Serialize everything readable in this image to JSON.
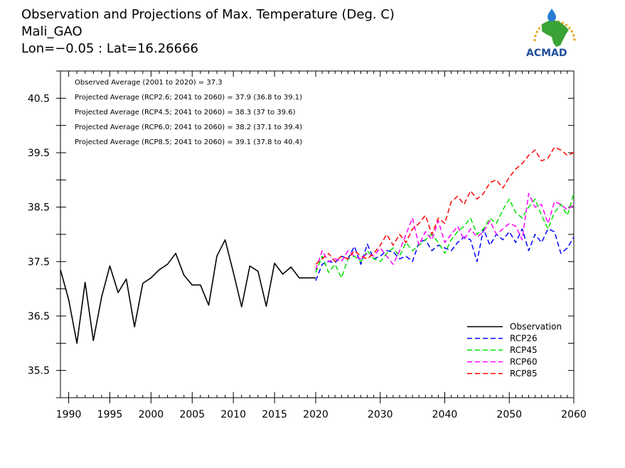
{
  "titles": [
    "Observation and Projections of Max. Temperature (Deg. C)",
    "Mali_GAO",
    "Lon=−0.05 : Lat=16.26666"
  ],
  "logo": {
    "text": "ACMAD",
    "icon": "africa-map-icon",
    "colors": {
      "map": "#3aa335",
      "rays": "#e8a317",
      "drop": "#2a7bd4",
      "text": "#1f4e9c"
    }
  },
  "annotations": [
    "Observed Average (2001 to 2020) = 37.3",
    "Projected Average (RCP2.6; 2041 to 2060) = 37.9 (36.8 to 39.1)",
    "Projected Average (RCP4.5; 2041 to 2060) = 38.3 (37 to 39.6)",
    "Projected Average (RCP6.0; 2041 to 2060) = 38.2 (37.1 to 39.4)",
    "Projected Average (RCP8.5; 2041 to 2060) = 39.1 (37.8 to 40.4)"
  ],
  "chart_data": {
    "type": "line",
    "title": "Observation and Projections of Max. Temperature (Deg. C)",
    "xlim": [
      1989,
      2060
    ],
    "ylim": [
      35.0,
      41.0
    ],
    "yticks": [
      35.5,
      36.5,
      37.5,
      38.5,
      39.5,
      40.5
    ],
    "ytick_labels": [
      "35.5",
      "36.5",
      "37.5",
      "38.5",
      "39.5",
      "40.5"
    ],
    "xticks_left": [
      1990,
      1995,
      2000,
      2005,
      2010,
      2015,
      2020
    ],
    "xtick_labels_left": [
      "1990",
      "1995",
      "2000",
      "2005",
      "2010",
      "2015",
      "2020"
    ],
    "xticks_right": [
      2020,
      2030,
      2040,
      2050,
      2060
    ],
    "xtick_labels_right": [
      "2020",
      "2030",
      "2040",
      "2050",
      "2060"
    ],
    "axis_break_year": 2020,
    "legend_position": "bottom-right",
    "series": [
      {
        "name": "Observation",
        "color": "#000000",
        "dash": "solid",
        "x": [
          1989,
          1990,
          1991,
          1992,
          1993,
          1994,
          1995,
          1996,
          1997,
          1998,
          1999,
          2000,
          2001,
          2002,
          2003,
          2004,
          2005,
          2006,
          2007,
          2008,
          2009,
          2010,
          2011,
          2012,
          2013,
          2014,
          2015,
          2016,
          2017,
          2018,
          2019,
          2020
        ],
        "y": [
          37.35,
          36.8,
          36.0,
          37.12,
          36.05,
          36.85,
          37.42,
          36.93,
          37.18,
          36.3,
          37.1,
          37.2,
          37.35,
          37.45,
          37.65,
          37.25,
          37.07,
          37.07,
          36.7,
          37.6,
          37.9,
          37.3,
          36.67,
          37.42,
          37.32,
          36.68,
          37.47,
          37.27,
          37.4,
          37.2,
          37.2,
          37.2
        ]
      },
      {
        "name": "RCP26",
        "color": "#0000ff",
        "dash": "dashed",
        "x": [
          2020,
          2021,
          2022,
          2023,
          2024,
          2025,
          2026,
          2027,
          2028,
          2029,
          2030,
          2031,
          2032,
          2033,
          2034,
          2035,
          2036,
          2037,
          2038,
          2039,
          2040,
          2041,
          2042,
          2043,
          2044,
          2045,
          2046,
          2047,
          2048,
          2049,
          2050,
          2051,
          2052,
          2053,
          2054,
          2055,
          2056,
          2057,
          2058,
          2059,
          2060
        ],
        "y": [
          37.15,
          37.45,
          37.5,
          37.48,
          37.6,
          37.55,
          37.78,
          37.45,
          37.82,
          37.55,
          37.6,
          37.7,
          37.68,
          37.55,
          37.6,
          37.5,
          37.85,
          37.9,
          37.7,
          37.8,
          37.75,
          37.7,
          37.85,
          37.95,
          37.9,
          37.5,
          38.1,
          37.8,
          38.0,
          37.9,
          38.05,
          37.85,
          38.1,
          37.7,
          38.0,
          37.85,
          38.1,
          38.05,
          37.65,
          37.75,
          37.95
        ]
      },
      {
        "name": "RCP45",
        "color": "#00e000",
        "dash": "dashed",
        "x": [
          2020,
          2021,
          2022,
          2023,
          2024,
          2025,
          2026,
          2027,
          2028,
          2029,
          2030,
          2031,
          2032,
          2033,
          2034,
          2035,
          2036,
          2037,
          2038,
          2039,
          2040,
          2041,
          2042,
          2043,
          2044,
          2045,
          2046,
          2047,
          2048,
          2049,
          2050,
          2051,
          2052,
          2053,
          2054,
          2055,
          2056,
          2057,
          2058,
          2059,
          2060
        ],
        "y": [
          37.3,
          37.6,
          37.3,
          37.45,
          37.2,
          37.55,
          37.6,
          37.5,
          37.7,
          37.55,
          37.5,
          37.65,
          37.75,
          37.6,
          37.85,
          37.7,
          37.8,
          37.9,
          38.0,
          37.85,
          37.65,
          37.9,
          38.05,
          38.15,
          38.3,
          38.0,
          38.1,
          38.3,
          38.2,
          38.45,
          38.65,
          38.4,
          38.3,
          38.5,
          38.65,
          38.35,
          38.1,
          38.4,
          38.55,
          38.35,
          38.75
        ]
      },
      {
        "name": "RCP60",
        "color": "#ff00ff",
        "dash": "dashed",
        "x": [
          2020,
          2021,
          2022,
          2023,
          2024,
          2025,
          2026,
          2027,
          2028,
          2029,
          2030,
          2031,
          2032,
          2033,
          2034,
          2035,
          2036,
          2037,
          2038,
          2039,
          2040,
          2041,
          2042,
          2043,
          2044,
          2045,
          2046,
          2047,
          2048,
          2049,
          2050,
          2051,
          2052,
          2053,
          2054,
          2055,
          2056,
          2057,
          2058,
          2059,
          2060
        ],
        "y": [
          37.35,
          37.7,
          37.5,
          37.55,
          37.5,
          37.7,
          37.6,
          37.55,
          37.65,
          37.6,
          37.75,
          37.6,
          37.45,
          37.7,
          38.0,
          38.3,
          37.8,
          38.05,
          37.9,
          38.25,
          37.85,
          38.0,
          38.15,
          37.9,
          38.1,
          37.95,
          38.05,
          38.25,
          38.0,
          38.1,
          38.2,
          38.15,
          37.9,
          38.75,
          38.5,
          38.55,
          38.2,
          38.6,
          38.55,
          38.45,
          38.55
        ]
      },
      {
        "name": "RCP85",
        "color": "#ff0000",
        "dash": "dashed",
        "x": [
          2020,
          2021,
          2022,
          2023,
          2024,
          2025,
          2026,
          2027,
          2028,
          2029,
          2030,
          2031,
          2032,
          2033,
          2034,
          2035,
          2036,
          2037,
          2038,
          2039,
          2040,
          2041,
          2042,
          2043,
          2044,
          2045,
          2046,
          2047,
          2048,
          2049,
          2050,
          2051,
          2052,
          2053,
          2054,
          2055,
          2056,
          2057,
          2058,
          2059,
          2060
        ],
        "y": [
          37.45,
          37.55,
          37.65,
          37.5,
          37.6,
          37.55,
          37.7,
          37.6,
          37.55,
          37.65,
          37.8,
          38.0,
          37.8,
          38.0,
          37.85,
          38.1,
          38.2,
          38.35,
          38.0,
          38.3,
          38.2,
          38.6,
          38.7,
          38.55,
          38.8,
          38.65,
          38.75,
          38.95,
          39.0,
          38.85,
          39.05,
          39.2,
          39.3,
          39.45,
          39.55,
          39.35,
          39.4,
          39.6,
          39.55,
          39.45,
          39.5
        ]
      }
    ]
  }
}
